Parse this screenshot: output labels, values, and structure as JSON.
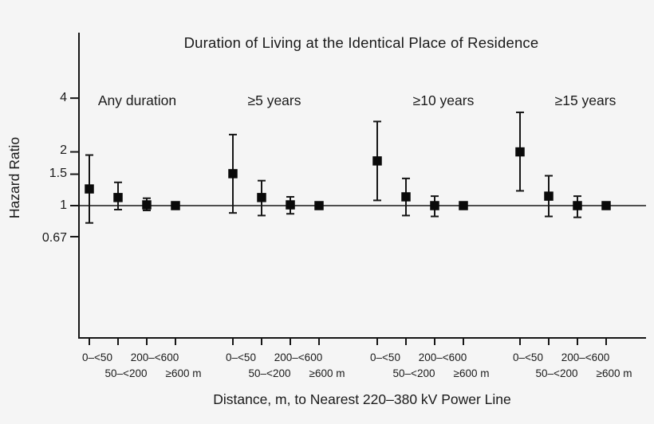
{
  "background": "#f5f5f5",
  "ink": "#161616",
  "chart_data": {
    "type": "scatter",
    "subtype": "forest-plot-error-bars",
    "title": "Duration of Living at the Identical Place of Residence",
    "ylabel": "Hazard Ratio",
    "xlabel": "Distance, m, to Nearest 220–380 kV Power Line",
    "yscale": "log",
    "ylim": [
      0.18,
      9.3
    ],
    "grid": false,
    "legend": "none",
    "reference_line": 1.0,
    "marker": "filled-square",
    "y_ticks": [
      {
        "label": "4",
        "value": 4
      },
      {
        "label": "2",
        "value": 2
      },
      {
        "label": "1.5",
        "value": 1.5
      },
      {
        "label": "1",
        "value": 1
      },
      {
        "label": "0.67",
        "value": 0.67
      }
    ],
    "x_categories": [
      "0–<50",
      "50–<200",
      "200–<600",
      "≥600 m"
    ],
    "groups": [
      {
        "label": "Any duration",
        "points": [
          {
            "category": "0–<50",
            "hr": 1.24,
            "ci_low": 0.8,
            "ci_high": 1.92,
            "reference": false
          },
          {
            "category": "50–<200",
            "hr": 1.11,
            "ci_low": 0.95,
            "ci_high": 1.35,
            "reference": false
          },
          {
            "category": "200–<600",
            "hr": 1.01,
            "ci_low": 0.94,
            "ci_high": 1.1,
            "reference": false
          },
          {
            "category": "≥600 m",
            "hr": 1.0,
            "ci_low": null,
            "ci_high": null,
            "reference": true
          }
        ]
      },
      {
        "label": "≥5 years",
        "points": [
          {
            "category": "0–<50",
            "hr": 1.51,
            "ci_low": 0.91,
            "ci_high": 2.5,
            "reference": false
          },
          {
            "category": "50–<200",
            "hr": 1.11,
            "ci_low": 0.88,
            "ci_high": 1.38,
            "reference": false
          },
          {
            "category": "200–<600",
            "hr": 1.01,
            "ci_low": 0.9,
            "ci_high": 1.12,
            "reference": false
          },
          {
            "category": "≥600 m",
            "hr": 1.0,
            "ci_low": null,
            "ci_high": null,
            "reference": true
          }
        ]
      },
      {
        "label": "≥10 years",
        "points": [
          {
            "category": "0–<50",
            "hr": 1.78,
            "ci_low": 1.07,
            "ci_high": 2.96,
            "reference": false
          },
          {
            "category": "50–<200",
            "hr": 1.12,
            "ci_low": 0.88,
            "ci_high": 1.42,
            "reference": false
          },
          {
            "category": "200–<600",
            "hr": 1.0,
            "ci_low": 0.87,
            "ci_high": 1.13,
            "reference": false
          },
          {
            "category": "≥600 m",
            "hr": 1.0,
            "ci_low": null,
            "ci_high": null,
            "reference": true
          }
        ]
      },
      {
        "label": "≥15 years",
        "points": [
          {
            "category": "0–<50",
            "hr": 2.0,
            "ci_low": 1.21,
            "ci_high": 3.33,
            "reference": false
          },
          {
            "category": "50–<200",
            "hr": 1.13,
            "ci_low": 0.87,
            "ci_high": 1.47,
            "reference": false
          },
          {
            "category": "200–<600",
            "hr": 1.0,
            "ci_low": 0.86,
            "ci_high": 1.13,
            "reference": false
          },
          {
            "category": "≥600 m",
            "hr": 1.0,
            "ci_low": null,
            "ci_high": null,
            "reference": true
          }
        ]
      }
    ]
  }
}
